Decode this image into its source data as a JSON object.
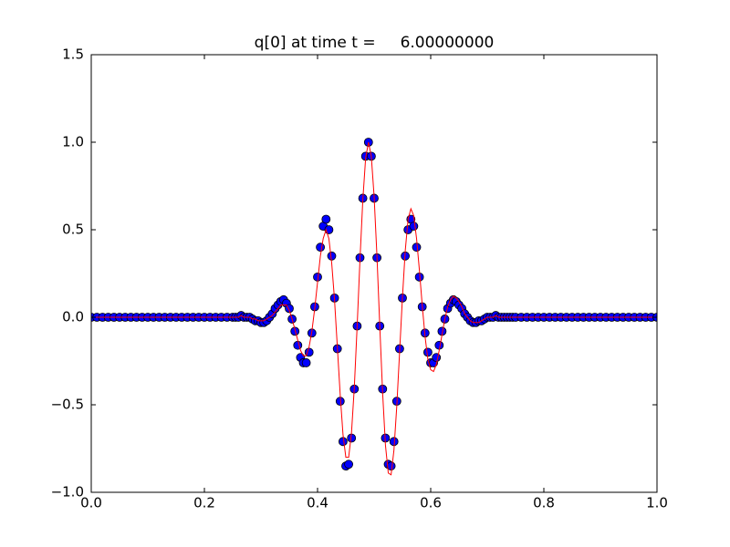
{
  "chart_data": {
    "type": "line",
    "title": "q[0] at time t =     6.00000000",
    "x": [
      0,
      0.01,
      0.02,
      0.03,
      0.04,
      0.05,
      0.06,
      0.07,
      0.08,
      0.09,
      0.1,
      0.11,
      0.12,
      0.13,
      0.14,
      0.15,
      0.16,
      0.17,
      0.18,
      0.19,
      0.2,
      0.21,
      0.22,
      0.23,
      0.24,
      0.25,
      0.255,
      0.26,
      0.265,
      0.27,
      0.275,
      0.28,
      0.285,
      0.29,
      0.295,
      0.3,
      0.305,
      0.31,
      0.315,
      0.32,
      0.325,
      0.33,
      0.335,
      0.34,
      0.345,
      0.35,
      0.355,
      0.36,
      0.365,
      0.37,
      0.375,
      0.38,
      0.385,
      0.39,
      0.395,
      0.4,
      0.405,
      0.41,
      0.415,
      0.42,
      0.425,
      0.43,
      0.435,
      0.44,
      0.445,
      0.45,
      0.455,
      0.46,
      0.465,
      0.47,
      0.475,
      0.48,
      0.485,
      0.49,
      0.495,
      0.5,
      0.505,
      0.51,
      0.515,
      0.52,
      0.525,
      0.53,
      0.535,
      0.54,
      0.545,
      0.55,
      0.555,
      0.56,
      0.565,
      0.57,
      0.575,
      0.58,
      0.585,
      0.59,
      0.595,
      0.6,
      0.605,
      0.61,
      0.615,
      0.62,
      0.625,
      0.63,
      0.635,
      0.64,
      0.645,
      0.65,
      0.655,
      0.66,
      0.665,
      0.67,
      0.675,
      0.68,
      0.685,
      0.69,
      0.695,
      0.7,
      0.705,
      0.71,
      0.715,
      0.72,
      0.725,
      0.73,
      0.735,
      0.74,
      0.745,
      0.75,
      0.76,
      0.77,
      0.78,
      0.79,
      0.8,
      0.81,
      0.82,
      0.83,
      0.84,
      0.85,
      0.86,
      0.87,
      0.88,
      0.89,
      0.9,
      0.91,
      0.92,
      0.93,
      0.94,
      0.95,
      0.96,
      0.97,
      0.98,
      0.99,
      1
    ],
    "series": [
      {
        "mode": "markers",
        "color": "#0000ff",
        "edgecolor": "#000000",
        "values": [
          0,
          0,
          0,
          0,
          0,
          0,
          0,
          0,
          0,
          0,
          0,
          0,
          0,
          0,
          0,
          0,
          0,
          0,
          0,
          0,
          0,
          0,
          0,
          0,
          0,
          0,
          0,
          0,
          0.01,
          0,
          0,
          0,
          -0.01,
          -0.02,
          -0.02,
          -0.03,
          -0.03,
          -0.02,
          0,
          0.02,
          0.05,
          0.07,
          0.09,
          0.1,
          0.08,
          0.05,
          -0.01,
          -0.08,
          -0.16,
          -0.23,
          -0.26,
          -0.26,
          -0.2,
          -0.09,
          0.06,
          0.23,
          0.4,
          0.52,
          0.56,
          0.5,
          0.35,
          0.11,
          -0.18,
          -0.48,
          -0.71,
          -0.85,
          -0.84,
          -0.69,
          -0.41,
          -0.05,
          0.34,
          0.68,
          0.92,
          1.0,
          0.92,
          0.68,
          0.34,
          -0.05,
          -0.41,
          -0.69,
          -0.84,
          -0.85,
          -0.71,
          -0.48,
          -0.18,
          0.11,
          0.35,
          0.5,
          0.56,
          0.52,
          0.4,
          0.23,
          0.06,
          -0.09,
          -0.2,
          -0.26,
          -0.26,
          -0.23,
          -0.16,
          -0.08,
          -0.01,
          0.05,
          0.08,
          0.1,
          0.09,
          0.07,
          0.05,
          0.02,
          0,
          -0.02,
          -0.03,
          -0.03,
          -0.02,
          -0.02,
          -0.01,
          0,
          0,
          0,
          0.01,
          0,
          0,
          0,
          0,
          0,
          0,
          0,
          0,
          0,
          0,
          0,
          0,
          0,
          0,
          0,
          0,
          0,
          0,
          0,
          0,
          0,
          0,
          0,
          0,
          0,
          0,
          0,
          0,
          0,
          0,
          0,
          0
        ]
      },
      {
        "mode": "line",
        "color": "#ff0000",
        "values": [
          0,
          0,
          0,
          0,
          0,
          0,
          0,
          0,
          0,
          0,
          0,
          0,
          0,
          0,
          0,
          0,
          0,
          0,
          0,
          0,
          0,
          0,
          0,
          0,
          0,
          0,
          0,
          0,
          0.01,
          0,
          0,
          0,
          -0.01,
          -0.01,
          -0.02,
          -0.02,
          -0.02,
          -0.01,
          0,
          0.01,
          0.03,
          0.05,
          0.07,
          0.07,
          0.07,
          0.04,
          -0.01,
          -0.07,
          -0.13,
          -0.19,
          -0.22,
          -0.22,
          -0.17,
          -0.08,
          0.05,
          0.2,
          0.35,
          0.45,
          0.5,
          0.45,
          0.31,
          0.1,
          -0.17,
          -0.44,
          -0.67,
          -0.8,
          -0.8,
          -0.66,
          -0.4,
          -0.05,
          0.33,
          0.67,
          0.91,
          1.0,
          0.92,
          0.69,
          0.35,
          -0.05,
          -0.43,
          -0.73,
          -0.89,
          -0.9,
          -0.76,
          -0.51,
          -0.2,
          0.11,
          0.38,
          0.56,
          0.62,
          0.58,
          0.45,
          0.27,
          0.07,
          -0.11,
          -0.24,
          -0.3,
          -0.31,
          -0.27,
          -0.19,
          -0.1,
          -0.01,
          0.06,
          0.1,
          0.12,
          0.11,
          0.09,
          0.06,
          0.02,
          0,
          -0.02,
          -0.03,
          -0.03,
          -0.03,
          -0.02,
          -0.01,
          0,
          0,
          0,
          0.01,
          0,
          0,
          0,
          0,
          0,
          0,
          0,
          0,
          0,
          0,
          0,
          0,
          0,
          0,
          0,
          0,
          0,
          0,
          0,
          0,
          0,
          0,
          0,
          0,
          0,
          0,
          0,
          0,
          0,
          0,
          0,
          0
        ]
      }
    ],
    "xlim": [
      0,
      1
    ],
    "xticks": [
      {
        "value": 0,
        "label": "0.0"
      },
      0.2,
      0.4,
      0.6,
      0.8,
      {
        "value": 1,
        "label": "1.0"
      }
    ],
    "ylim": [
      -1,
      1.5
    ],
    "yticks": [
      {
        "value": -1,
        "label": "−1.0"
      },
      {
        "value": -0.5,
        "label": "−0.5"
      },
      {
        "value": 0,
        "label": "0.0"
      },
      0.5,
      {
        "value": 1,
        "label": "1.0"
      },
      1.5
    ],
    "grid": false
  }
}
